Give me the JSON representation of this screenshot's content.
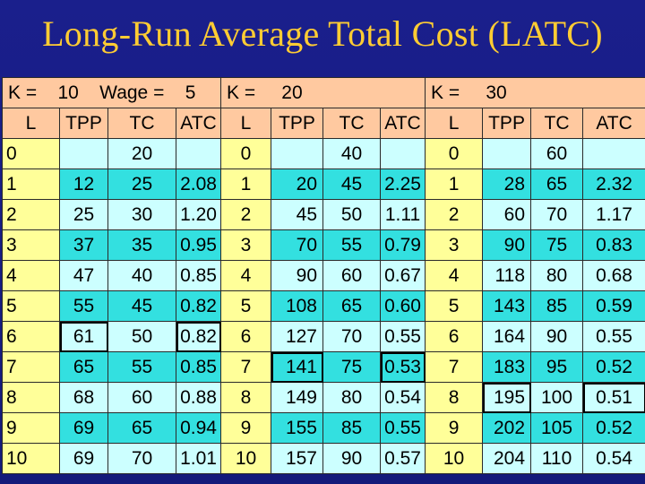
{
  "title": "Long-Run Average Total Cost (LATC)",
  "panels": [
    {
      "k_label": "K =",
      "k_value": "10",
      "wage_label": "Wage =",
      "wage_value": "5",
      "columns": [
        "L",
        "TPP",
        "TC",
        "ATC"
      ],
      "rows": [
        [
          "0",
          "",
          "20",
          ""
        ],
        [
          "1",
          "12",
          "25",
          "2.08"
        ],
        [
          "2",
          "25",
          "30",
          "1.20"
        ],
        [
          "3",
          "37",
          "35",
          "0.95"
        ],
        [
          "4",
          "47",
          "40",
          "0.85"
        ],
        [
          "5",
          "55",
          "45",
          "0.82"
        ],
        [
          "6",
          "61",
          "50",
          "0.82"
        ],
        [
          "7",
          "65",
          "55",
          "0.85"
        ],
        [
          "8",
          "68",
          "60",
          "0.88"
        ],
        [
          "9",
          "69",
          "65",
          "0.94"
        ],
        [
          "10",
          "69",
          "70",
          "1.01"
        ]
      ],
      "highlighted_row": 6
    },
    {
      "k_label": "K =",
      "k_value": "20",
      "columns": [
        "L",
        "TPP",
        "TC",
        "ATC"
      ],
      "rows": [
        [
          "0",
          "",
          "40",
          ""
        ],
        [
          "1",
          "20",
          "45",
          "2.25"
        ],
        [
          "2",
          "45",
          "50",
          "1.11"
        ],
        [
          "3",
          "70",
          "55",
          "0.79"
        ],
        [
          "4",
          "90",
          "60",
          "0.67"
        ],
        [
          "5",
          "108",
          "65",
          "0.60"
        ],
        [
          "6",
          "127",
          "70",
          "0.55"
        ],
        [
          "7",
          "141",
          "75",
          "0.53"
        ],
        [
          "8",
          "149",
          "80",
          "0.54"
        ],
        [
          "9",
          "155",
          "85",
          "0.55"
        ],
        [
          "10",
          "157",
          "90",
          "0.57"
        ]
      ],
      "highlighted_row": 7
    },
    {
      "k_label": "K =",
      "k_value": "30",
      "columns": [
        "L",
        "TPP",
        "TC",
        "ATC"
      ],
      "rows": [
        [
          "0",
          "",
          "60",
          ""
        ],
        [
          "1",
          "28",
          "65",
          "2.32"
        ],
        [
          "2",
          "60",
          "70",
          "1.17"
        ],
        [
          "3",
          "90",
          "75",
          "0.83"
        ],
        [
          "4",
          "118",
          "80",
          "0.68"
        ],
        [
          "5",
          "143",
          "85",
          "0.59"
        ],
        [
          "6",
          "164",
          "90",
          "0.55"
        ],
        [
          "7",
          "183",
          "95",
          "0.52"
        ],
        [
          "8",
          "195",
          "100",
          "0.51"
        ],
        [
          "9",
          "202",
          "105",
          "0.52"
        ],
        [
          "10",
          "204",
          "110",
          "0.54"
        ]
      ],
      "highlighted_row": 8
    }
  ],
  "colors": {
    "background": "#1a1f8c",
    "title": "#ffcc33",
    "header": "#ffc9a0",
    "labor_column": "#ffff99",
    "row_dark": "#33e0e0",
    "row_light": "#ccffff"
  }
}
